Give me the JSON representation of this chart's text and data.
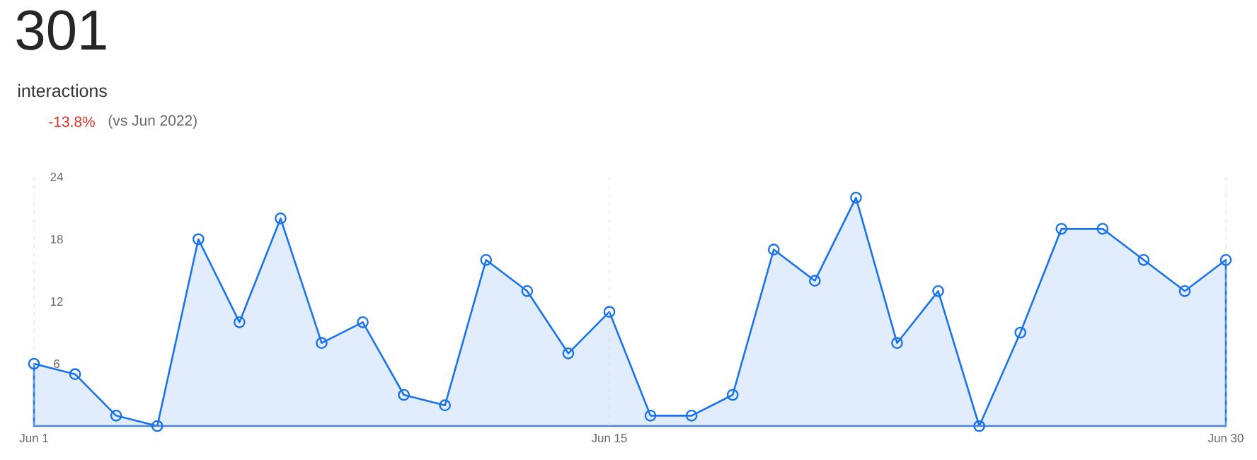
{
  "chart_data": {
    "type": "area",
    "title": "301",
    "subtitle": "interactions",
    "annotations": [
      "-13.8%",
      "(vs Jun 2022)"
    ],
    "categories": [
      "Jun 1",
      null,
      null,
      null,
      null,
      null,
      null,
      null,
      null,
      null,
      null,
      null,
      null,
      null,
      "Jun 15",
      null,
      null,
      null,
      null,
      null,
      null,
      null,
      null,
      null,
      null,
      null,
      null,
      null,
      null,
      "Jun 30"
    ],
    "series": [
      {
        "color": "#1a73e8",
        "values": [
          6,
          5,
          1,
          0,
          18,
          10,
          20,
          8,
          10,
          3,
          2,
          16,
          13,
          7,
          11,
          1,
          1,
          3,
          17,
          14,
          22,
          8,
          13,
          0,
          9,
          19,
          19,
          16,
          13,
          16
        ]
      }
    ],
    "ylim": [
      0,
      24
    ],
    "yticks": [
      6,
      12,
      18,
      24
    ],
    "grid": "x",
    "marker": "circle"
  }
}
